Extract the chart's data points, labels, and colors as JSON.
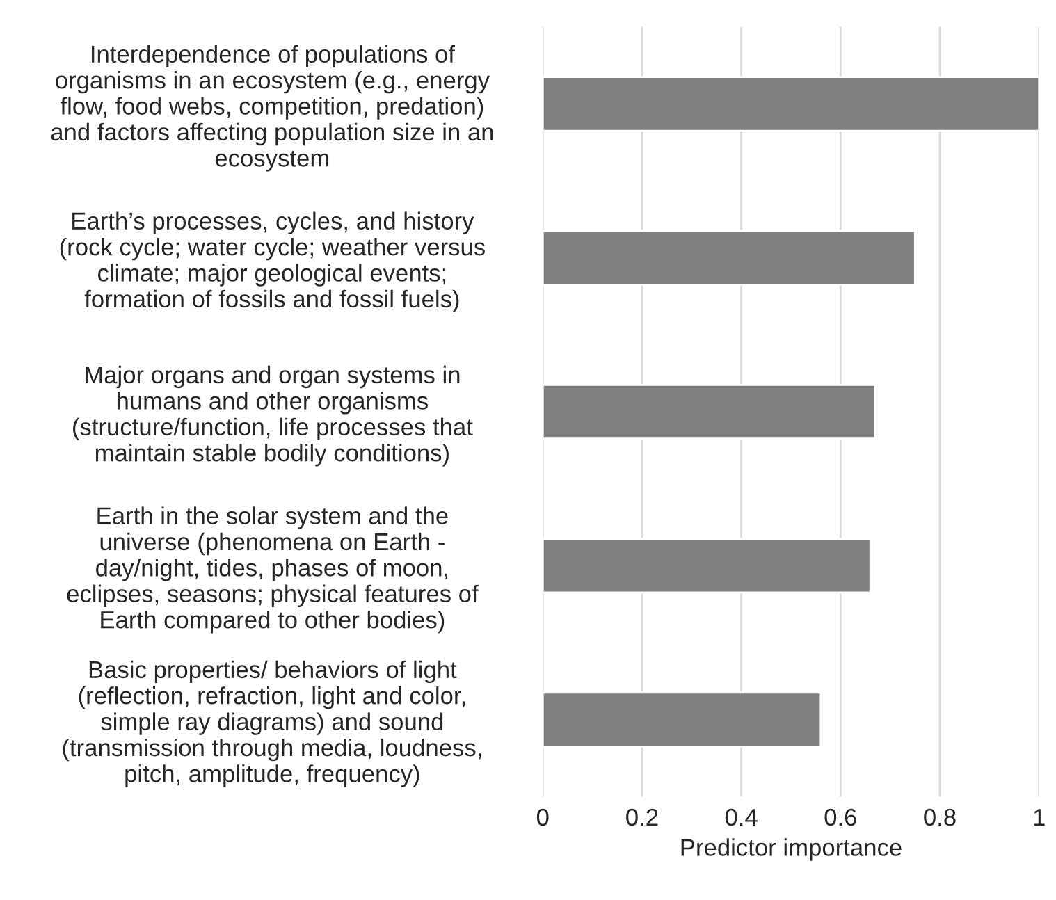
{
  "chart_data": {
    "type": "bar",
    "orientation": "horizontal",
    "xlabel": "Predictor importance",
    "categories": [
      "Interdependence of populations of\norganisms in an ecosystem (e.g., energy\nflow, food webs, competition, predation)\nand factors affecting population size in an\necosystem",
      "Earth’s processes, cycles, and history\n(rock cycle; water cycle; weather versus\nclimate; major geological events;\nformation of fossils and fossil fuels)",
      "Major organs and organ systems in\nhumans and other organisms\n(structure/function, life processes that\nmaintain stable bodily conditions)",
      "Earth in the solar system and the\nuniverse (phenomena on Earth -\nday/night, tides, phases of moon,\neclipses, seasons; physical features of\nEarth compared to other bodies)",
      "Basic properties/ behaviors of light\n(reflection, refraction, light and color,\nsimple ray diagrams) and sound\n(transmission through media, loudness,\npitch, amplitude, frequency)"
    ],
    "values": [
      1.0,
      0.75,
      0.67,
      0.66,
      0.56
    ],
    "color": "#7f7f7f",
    "xlim": [
      0,
      1
    ],
    "xticks": [
      0,
      0.2,
      0.4,
      0.6,
      0.8,
      1
    ],
    "grid": "x"
  }
}
